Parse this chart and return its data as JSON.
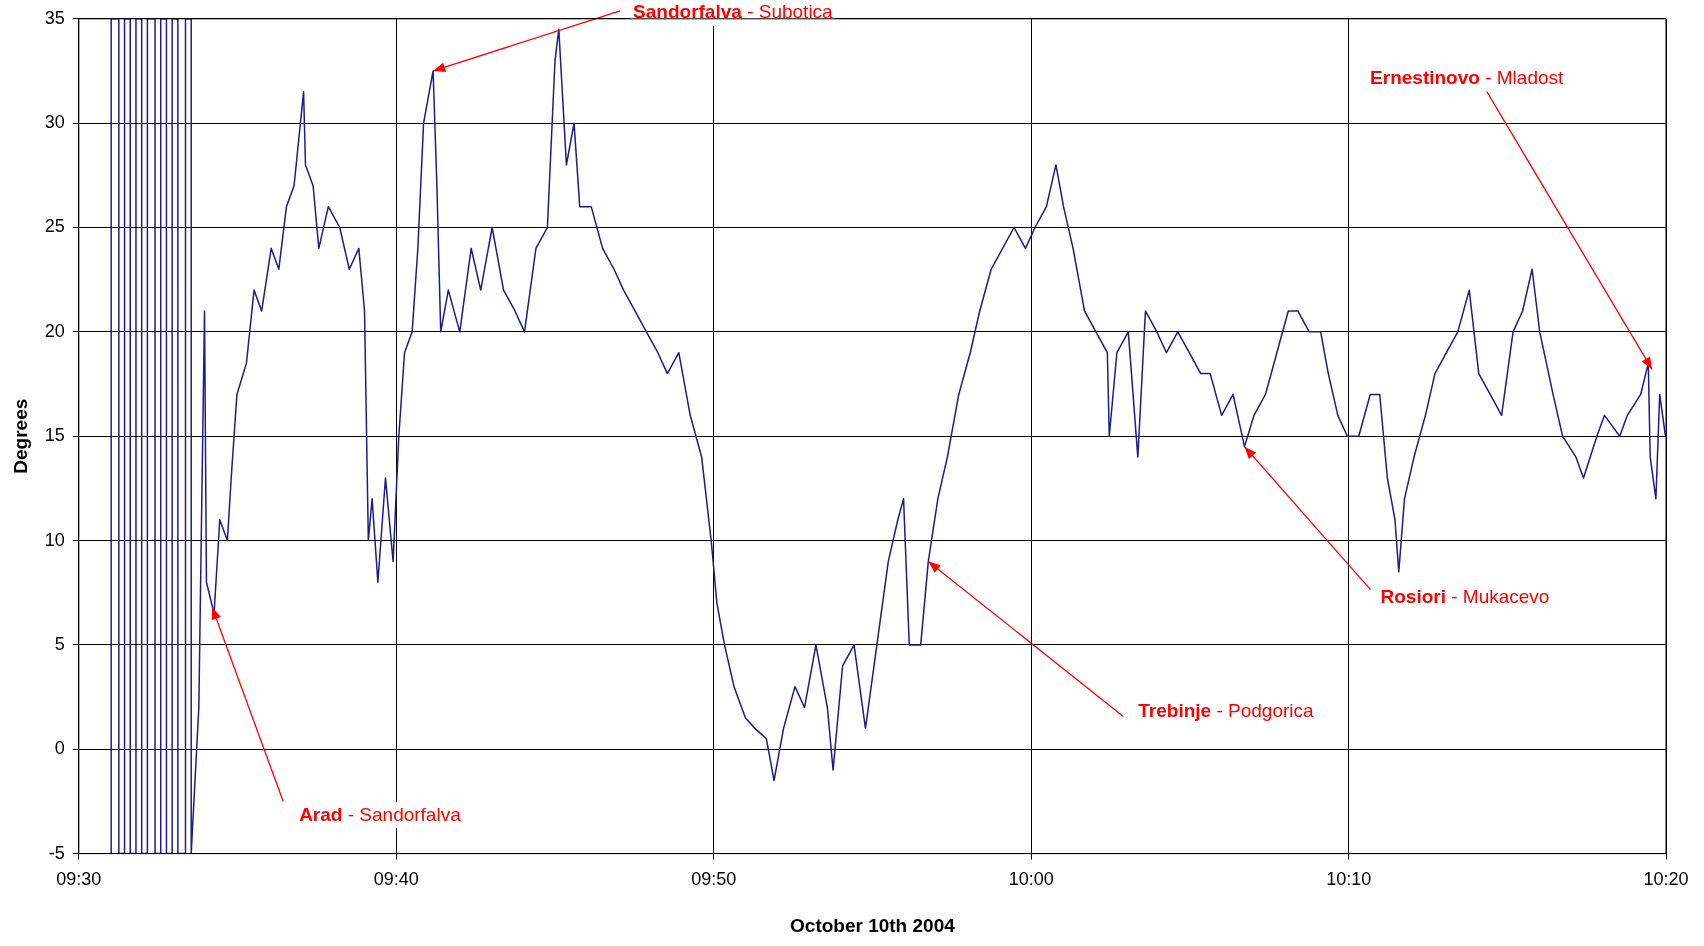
{
  "chart_data": {
    "type": "line",
    "xlabel": "October 10th 2004",
    "ylabel": "Degrees",
    "xlim": [
      9.5,
      10.3333
    ],
    "xticks": [
      {
        "value": 9.5,
        "label": "09:30"
      },
      {
        "value": 9.6667,
        "label": "09:40"
      },
      {
        "value": 9.8333,
        "label": "09:50"
      },
      {
        "value": 10,
        "label": "10:00"
      },
      {
        "value": 10.1667,
        "label": "10:10"
      },
      {
        "value": 10.3333,
        "label": "10:20"
      }
    ],
    "ylim": [
      -5,
      35
    ],
    "yticks": [
      -5,
      0,
      5,
      10,
      15,
      20,
      25,
      30,
      35
    ],
    "grid": true,
    "marker": "none",
    "line_style": "solid",
    "x": [
      9.517,
      9.517,
      9.521,
      9.521,
      9.524,
      9.524,
      9.527,
      9.527,
      9.53,
      9.53,
      9.533,
      9.533,
      9.536,
      9.536,
      9.54,
      9.54,
      9.543,
      9.543,
      9.546,
      9.546,
      9.549,
      9.549,
      9.552,
      9.552,
      9.556,
      9.556,
      9.559,
      9.559,
      9.563,
      9.566,
      9.567,
      9.571,
      9.574,
      9.578,
      9.58,
      9.583,
      9.588,
      9.592,
      9.596,
      9.601,
      9.605,
      9.609,
      9.613,
      9.618,
      9.619,
      9.623,
      9.626,
      9.631,
      9.637,
      9.642,
      9.647,
      9.65,
      9.652,
      9.654,
      9.657,
      9.661,
      9.665,
      9.668,
      9.671,
      9.675,
      9.678,
      9.681,
      9.686,
      9.688,
      9.69,
      9.694,
      9.7,
      9.706,
      9.711,
      9.717,
      9.723,
      9.729,
      9.734,
      9.74,
      9.746,
      9.75,
      9.752,
      9.756,
      9.76,
      9.763,
      9.769,
      9.775,
      9.781,
      9.786,
      9.792,
      9.798,
      9.804,
      9.809,
      9.815,
      9.821,
      9.827,
      9.832,
      9.835,
      9.839,
      9.844,
      9.85,
      9.855,
      9.861,
      9.865,
      9.87,
      9.876,
      9.881,
      9.887,
      9.893,
      9.896,
      9.901,
      9.907,
      9.913,
      9.919,
      9.925,
      9.93,
      9.933,
      9.936,
      9.942,
      9.946,
      9.951,
      9.956,
      9.962,
      9.968,
      9.973,
      9.979,
      9.985,
      9.991,
      9.997,
      10.002,
      10.008,
      10.013,
      10.017,
      10.022,
      10.028,
      10.034,
      10.04,
      10.041,
      10.045,
      10.051,
      10.056,
      10.06,
      10.066,
      10.071,
      10.077,
      10.083,
      10.089,
      10.094,
      10.1,
      10.106,
      10.112,
      10.117,
      10.123,
      10.129,
      10.135,
      10.14,
      10.146,
      10.152,
      10.156,
      10.161,
      10.166,
      10.172,
      10.178,
      10.183,
      10.187,
      10.191,
      10.193,
      10.196,
      10.201,
      10.207,
      10.212,
      10.218,
      10.224,
      10.23,
      10.235,
      10.241,
      10.247,
      10.253,
      10.258,
      10.263,
      10.267,
      10.274,
      10.279,
      10.286,
      10.29,
      10.297,
      10.301,
      10.309,
      10.313,
      10.32,
      10.324,
      10.325,
      10.328,
      10.33,
      10.333
    ],
    "series": [
      {
        "color": "#1c1c8c",
        "values": [
          -5,
          35,
          35,
          -5,
          -5,
          35,
          35,
          -5,
          -5,
          35,
          35,
          -5,
          -5,
          35,
          35,
          -5,
          -5,
          35,
          35,
          -5,
          -5,
          35,
          35,
          -5,
          -5,
          35,
          35,
          -5,
          2,
          21,
          8,
          6.5,
          11,
          10,
          13,
          17,
          18.5,
          22,
          21,
          24,
          23,
          26,
          27,
          31.5,
          28,
          27,
          24,
          26,
          25,
          23,
          24,
          21,
          10,
          12,
          8,
          13,
          9,
          15,
          19,
          20,
          24,
          30,
          32.5,
          27,
          20,
          22,
          20,
          24,
          22,
          25,
          22,
          21,
          20,
          24,
          25,
          33,
          34.5,
          28,
          30,
          26,
          26,
          24,
          23,
          22,
          21,
          20,
          19,
          18,
          19,
          16,
          14,
          10,
          7,
          5,
          3,
          1.5,
          1,
          0.5,
          -1.5,
          1,
          3,
          2,
          5,
          2,
          -1,
          4,
          5,
          1,
          5,
          9,
          11,
          12,
          5,
          5,
          9,
          12,
          14,
          17,
          19,
          21,
          23,
          24,
          25,
          24,
          25,
          26,
          28,
          26,
          24,
          21,
          20,
          19,
          15,
          19,
          20,
          14,
          21,
          20,
          19,
          20,
          19,
          18,
          18,
          16,
          17,
          14.5,
          16,
          17,
          19,
          21,
          21,
          20,
          20,
          18,
          16,
          15,
          15,
          17,
          17,
          13,
          11,
          8.5,
          12,
          14,
          16,
          18,
          19,
          20,
          22,
          18,
          17,
          16,
          20,
          21,
          23,
          20,
          17,
          15,
          14,
          13,
          15,
          16,
          15,
          16,
          17,
          18.5,
          14,
          12,
          17,
          15
        ]
      }
    ],
    "annotations": [
      {
        "text": "Arad - Sandorfalva",
        "x": 9.57,
        "y": 6.8
      },
      {
        "text": "Sandorfalva - Subotica",
        "x": 9.686,
        "y": 32.5
      },
      {
        "text": "Trebinje - Podgorica",
        "x": 9.946,
        "y": 9
      },
      {
        "text": "Rosiori - Mukacevo",
        "x": 10.112,
        "y": 14.5
      },
      {
        "text": "Ernestinovo - Mladost",
        "x": 10.326,
        "y": 18.2
      }
    ]
  }
}
